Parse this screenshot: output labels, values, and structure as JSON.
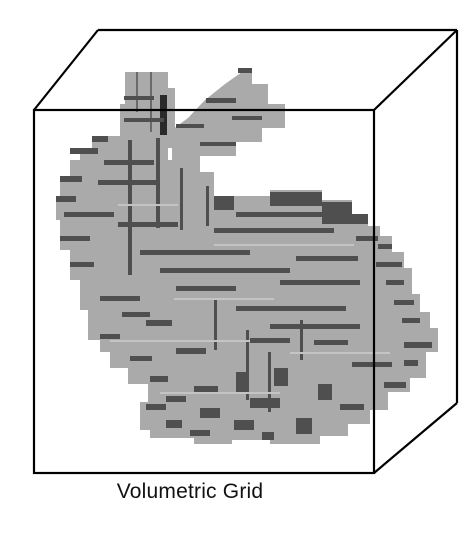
{
  "caption": "Volumetric Grid",
  "colors": {
    "voxel_light": "#aaaaaa",
    "voxel_dark": "#4f4f4f",
    "box_edge": "#000000",
    "background": "#ffffff"
  }
}
